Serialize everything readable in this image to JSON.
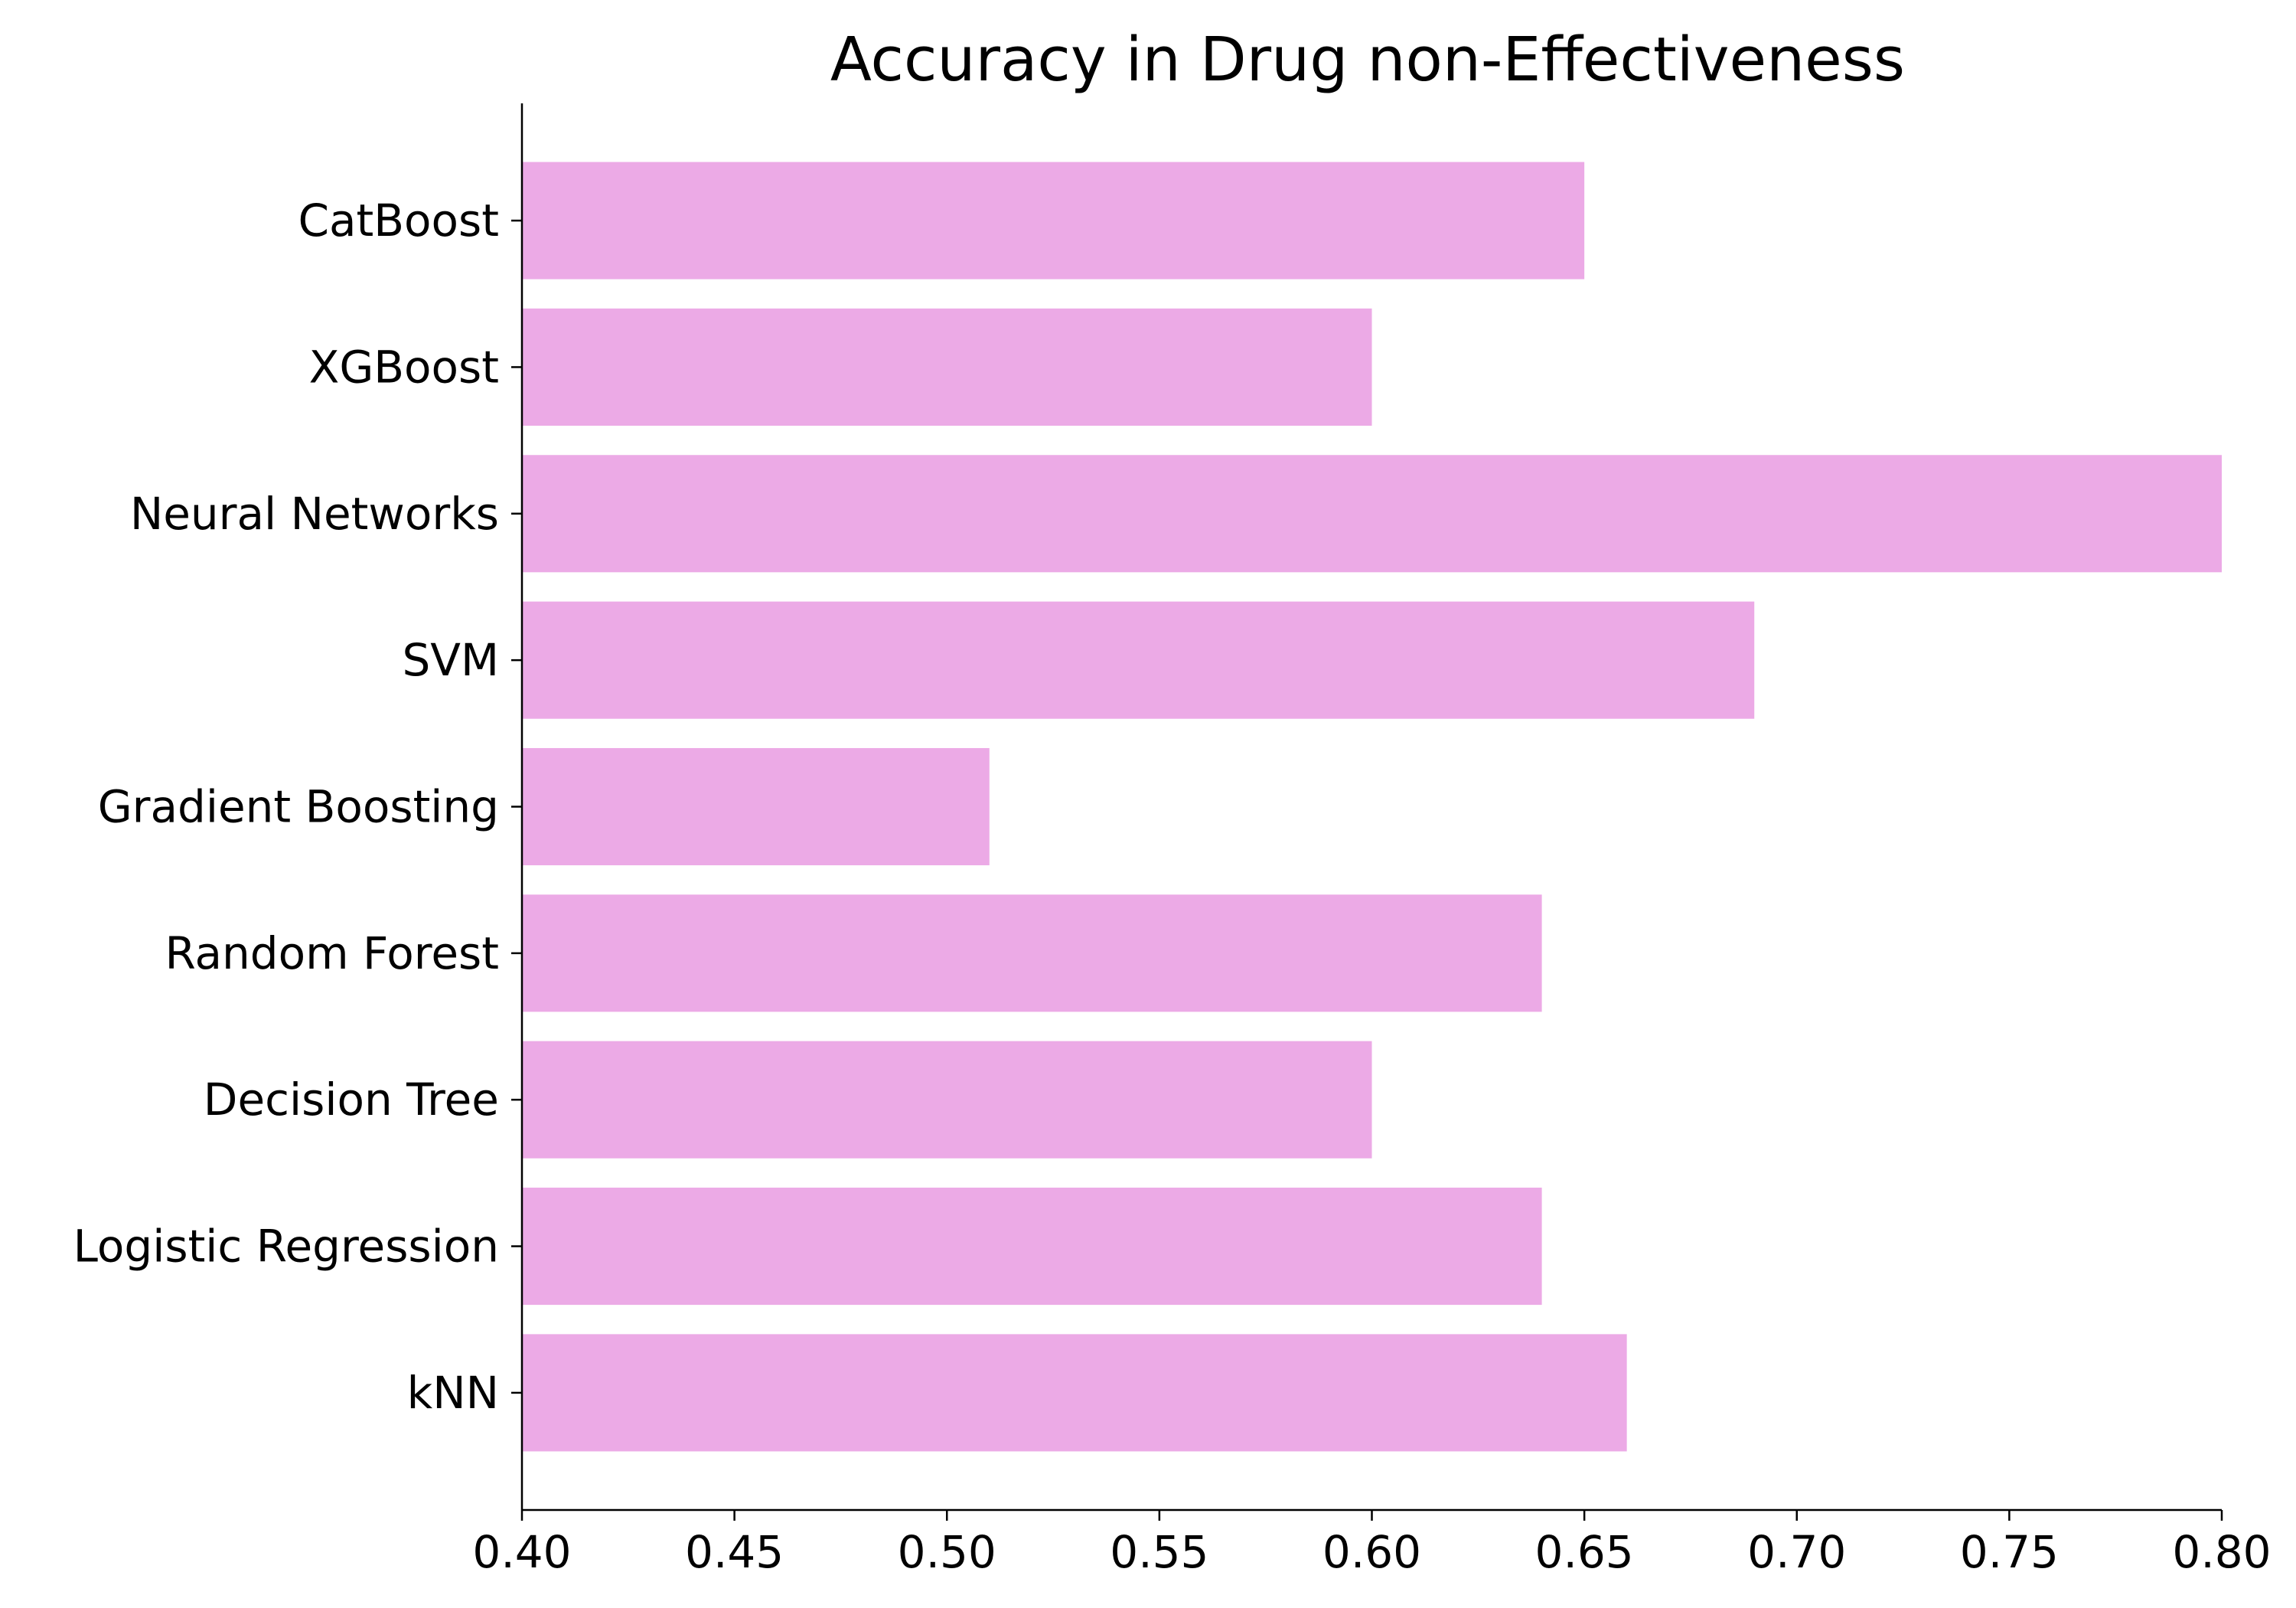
{
  "chart_data": {
    "type": "bar",
    "orientation": "horizontal",
    "title": "Accuracy in Drug non-Effectiveness",
    "xlabel": "",
    "ylabel": "",
    "categories": [
      "kNN",
      "Logistic Regression",
      "Decision Tree",
      "Random Forest",
      "Gradient Boosting",
      "SVM",
      "Neural Networks",
      "XGBoost",
      "CatBoost"
    ],
    "values": [
      0.66,
      0.64,
      0.6,
      0.64,
      0.51,
      0.69,
      0.8,
      0.6,
      0.65
    ],
    "xlim": [
      0.4,
      0.8
    ],
    "xticks": [
      "0.40",
      "0.45",
      "0.50",
      "0.55",
      "0.60",
      "0.65",
      "0.70",
      "0.75",
      "0.80"
    ],
    "grid": false,
    "legend": "none",
    "bar_color": "#ecaae6"
  }
}
